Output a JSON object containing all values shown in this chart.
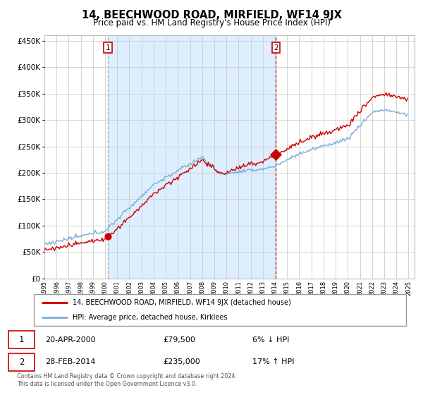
{
  "title": "14, BEECHWOOD ROAD, MIRFIELD, WF14 9JX",
  "subtitle": "Price paid vs. HM Land Registry's House Price Index (HPI)",
  "title_fontsize": 10.5,
  "subtitle_fontsize": 8.5,
  "ylabel_ticks": [
    "£0",
    "£50K",
    "£100K",
    "£150K",
    "£200K",
    "£250K",
    "£300K",
    "£350K",
    "£400K",
    "£450K"
  ],
  "ytick_values": [
    0,
    50000,
    100000,
    150000,
    200000,
    250000,
    300000,
    350000,
    400000,
    450000
  ],
  "ylim": [
    0,
    460000
  ],
  "sale1_t": 2000.25,
  "sale1_price": 79500,
  "sale2_t": 2014.083,
  "sale2_price": 235000,
  "legend_property": "14, BEECHWOOD ROAD, MIRFIELD, WF14 9JX (detached house)",
  "legend_hpi": "HPI: Average price, detached house, Kirklees",
  "table_rows": [
    {
      "num": "1",
      "date": "20-APR-2000",
      "price": "£79,500",
      "pct": "6% ↓ HPI"
    },
    {
      "num": "2",
      "date": "28-FEB-2014",
      "price": "£235,000",
      "pct": "17% ↑ HPI"
    }
  ],
  "footer": "Contains HM Land Registry data © Crown copyright and database right 2024.\nThis data is licensed under the Open Government Licence v3.0.",
  "property_color": "#cc0000",
  "hpi_color": "#7aaddb",
  "shade_color": "#ddeeff",
  "background_color": "#ffffff",
  "grid_color": "#cccccc"
}
